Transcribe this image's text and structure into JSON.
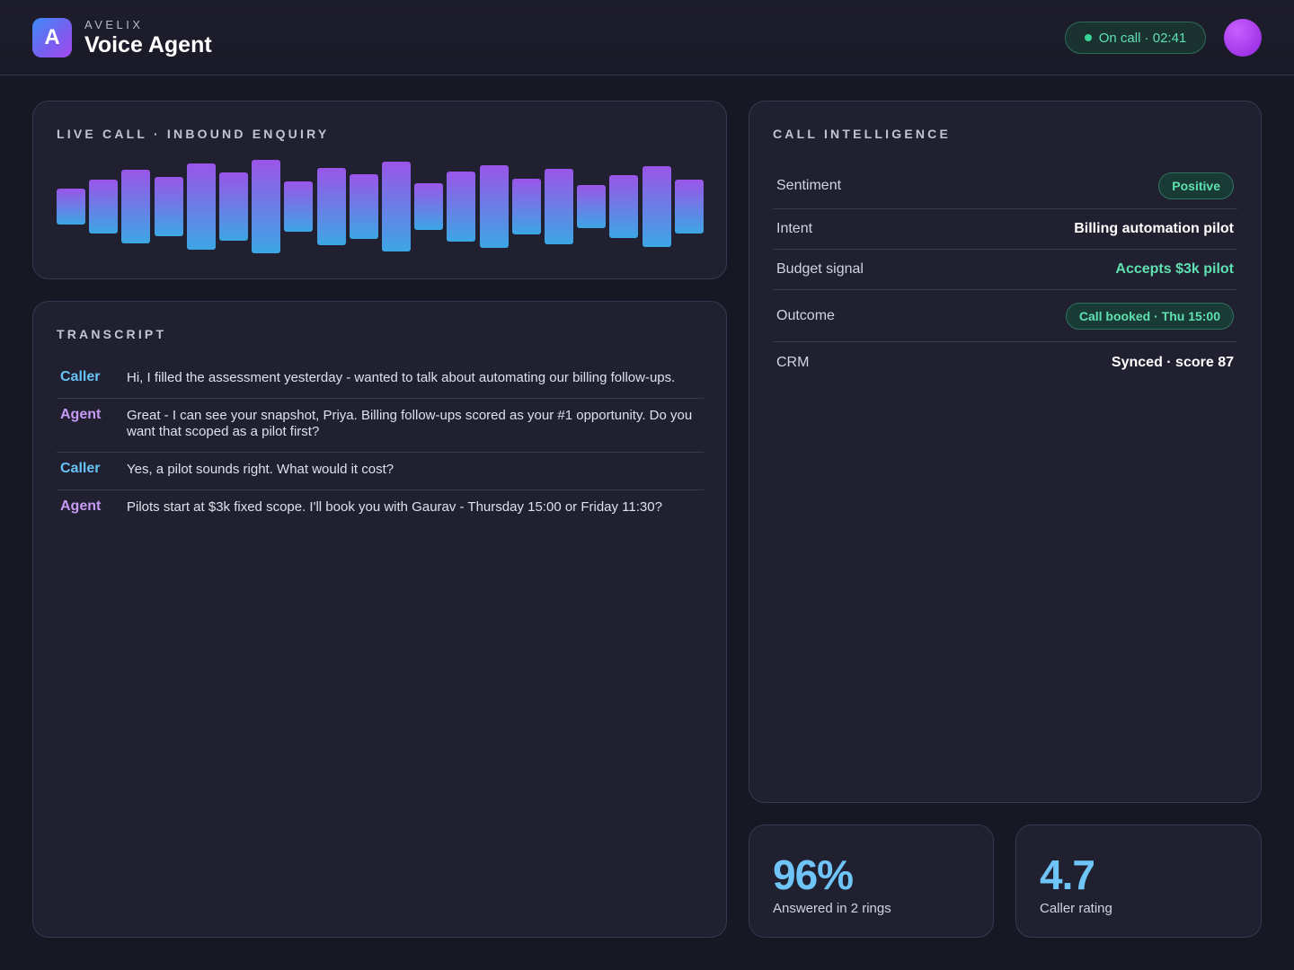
{
  "header": {
    "logo_letter": "A",
    "brand": "AVELIX",
    "title": "Voice Agent",
    "call_status": "On call · 02:41"
  },
  "live_call": {
    "title": "LIVE CALL · INBOUND ENQUIRY",
    "bar_levels": [
      0.22,
      0.47,
      0.73,
      0.54,
      0.91,
      0.67,
      1.0,
      0.41,
      0.78,
      0.61,
      0.95,
      0.37,
      0.69,
      0.86,
      0.49,
      0.75,
      0.31,
      0.59,
      0.82,
      0.46
    ]
  },
  "transcript": {
    "title": "TRANSCRIPT",
    "messages": [
      {
        "speaker": "Caller",
        "text": "Hi, I filled the assessment yesterday - wanted to talk about automating our billing follow-ups."
      },
      {
        "speaker": "Agent",
        "text": "Great - I can see your snapshot, Priya. Billing follow-ups scored as your #1 opportunity. Do you want that scoped as a pilot first?"
      },
      {
        "speaker": "Caller",
        "text": "Yes, a pilot sounds right. What would it cost?"
      },
      {
        "speaker": "Agent",
        "text": "Pilots start at $3k fixed scope. I'll book you with Gaurav - Thursday 15:00 or Friday 11:30?"
      }
    ]
  },
  "intelligence": {
    "title": "CALL INTELLIGENCE",
    "rows": [
      {
        "label": "Sentiment",
        "value": "Positive"
      },
      {
        "label": "Intent",
        "value": "Billing automation pilot"
      },
      {
        "label": "Budget signal",
        "value": "Accepts $3k pilot"
      },
      {
        "label": "Outcome",
        "value": "Call booked · Thu 15:00"
      },
      {
        "label": "CRM",
        "value": "Synced · score 87"
      }
    ]
  },
  "stats": [
    {
      "value": "96%",
      "label": "Answered in 2 rings"
    },
    {
      "value": "4.7",
      "label": "Caller rating"
    }
  ],
  "colors": {
    "background": "#181824",
    "card": "#202030",
    "accent_blue": "#6fc4f8",
    "accent_green": "#5fe0b0",
    "accent_purple": "#c79bf5"
  }
}
